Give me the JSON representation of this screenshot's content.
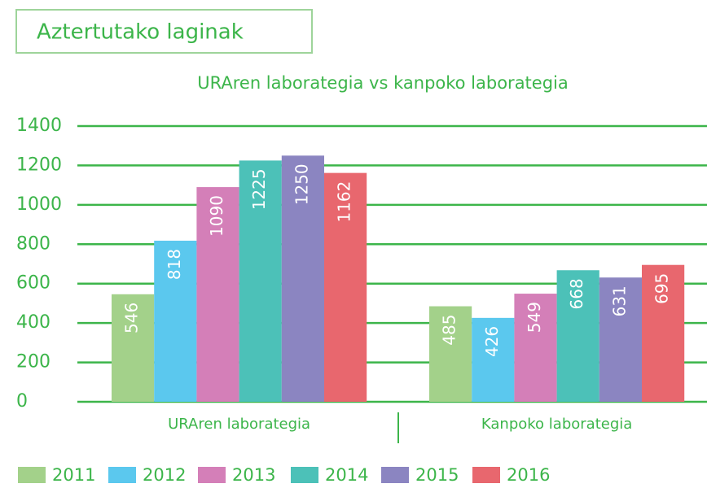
{
  "panel_title": "Aztertutako laginak",
  "chart_data": {
    "type": "bar",
    "title": "URAren laborategia vs kanpoko laborategia",
    "categories": [
      "URAren laborategia",
      "Kanpoko laborategia"
    ],
    "series": [
      {
        "name": "2011",
        "color": "#a3d18a",
        "values": [
          546,
          485
        ]
      },
      {
        "name": "2012",
        "color": "#5bc8ee",
        "values": [
          818,
          426
        ]
      },
      {
        "name": "2013",
        "color": "#d47fb8",
        "values": [
          1090,
          549
        ]
      },
      {
        "name": "2014",
        "color": "#4cc1b8",
        "values": [
          1225,
          668
        ]
      },
      {
        "name": "2015",
        "color": "#8b85c1",
        "values": [
          1250,
          631
        ]
      },
      {
        "name": "2016",
        "color": "#e8676e",
        "values": [
          1162,
          695
        ]
      }
    ],
    "ylim": [
      0,
      1400
    ],
    "yticks": [
      0,
      200,
      400,
      600,
      800,
      1000,
      1200,
      1400
    ],
    "grid": true,
    "legend": "bottom"
  }
}
